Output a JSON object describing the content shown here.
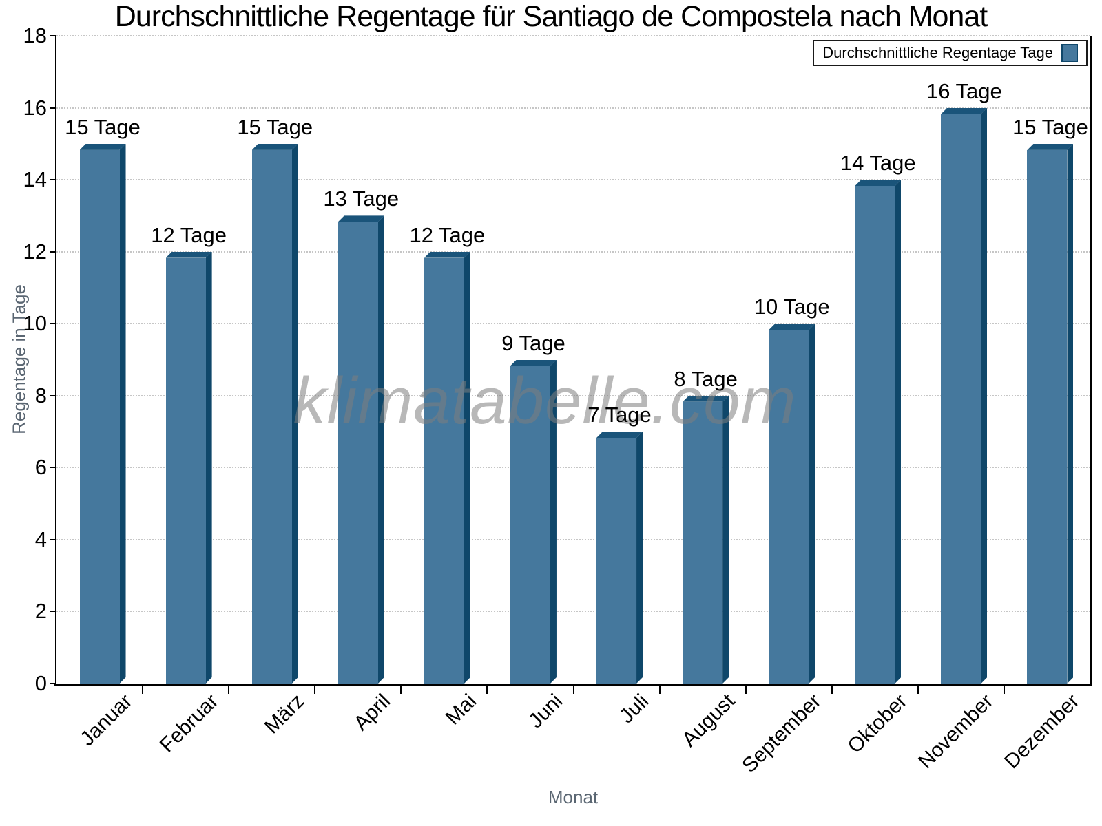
{
  "title": "Durchschnittliche Regentage für Santiago de Compostela nach Monat",
  "legend": {
    "label": "Durchschnittliche Regentage Tage"
  },
  "watermark": "klimatabelle.com",
  "axes": {
    "x_label": "Monat",
    "y_label": "Regentage in Tage"
  },
  "chart_data": {
    "type": "bar",
    "title": "Durchschnittliche Regentage für Santiago de Compostela nach Monat",
    "xlabel": "Monat",
    "ylabel": "Regentage in Tage",
    "categories": [
      "Januar",
      "Februar",
      "März",
      "April",
      "Mai",
      "Juni",
      "Juli",
      "August",
      "September",
      "Oktober",
      "November",
      "Dezember"
    ],
    "values": [
      15,
      12,
      15,
      13,
      12,
      9,
      7,
      8,
      10,
      14,
      16,
      15
    ],
    "data_labels": [
      "15 Tage",
      "12 Tage",
      "15 Tage",
      "13 Tage",
      "12 Tage",
      "9 Tage",
      "7 Tage",
      "8 Tage",
      "10 Tage",
      "14 Tage",
      "16 Tage",
      "15 Tage"
    ],
    "series": [
      {
        "name": "Durchschnittliche Regentage Tage",
        "values": [
          15,
          12,
          15,
          13,
          12,
          9,
          7,
          8,
          10,
          14,
          16,
          15
        ]
      }
    ],
    "ylim": [
      0,
      18
    ],
    "ytick_step": 2,
    "yticks": [
      0,
      2,
      4,
      6,
      8,
      10,
      12,
      14,
      16,
      18
    ],
    "grid": "horizontal-dotted",
    "legend_position": "top-right",
    "bar_style": "3d-extruded",
    "colors": {
      "bar_fill": "#45789D",
      "bar_side": "#0F476A",
      "bar_cap": "#1A547A",
      "grid": "#C6C6C6",
      "axis": "#000000",
      "axis_title": "#5A6672",
      "watermark": "#7D7D7D"
    }
  }
}
